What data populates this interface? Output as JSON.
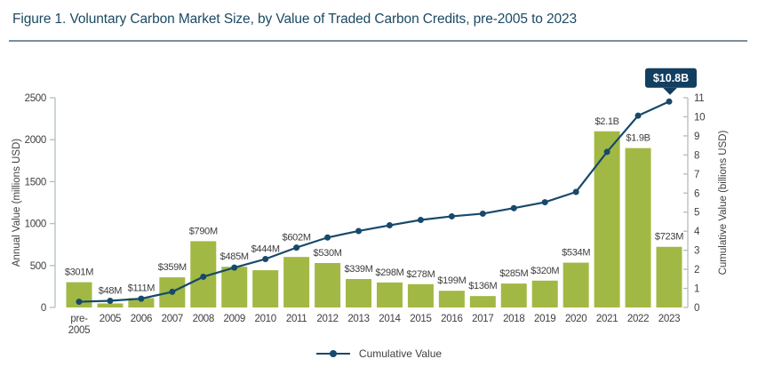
{
  "header": {
    "title": "Figure 1. Voluntary Carbon Market Size, by Value of Traded Carbon Credits, pre-2005 to 2023"
  },
  "chart_data": {
    "type": "bar+line combo",
    "categories": [
      "pre-2005",
      "2005",
      "2006",
      "2007",
      "2008",
      "2009",
      "2010",
      "2011",
      "2012",
      "2013",
      "2014",
      "2015",
      "2016",
      "2017",
      "2018",
      "2019",
      "2020",
      "2021",
      "2022",
      "2023"
    ],
    "series": [
      {
        "name": "Annual Value",
        "type": "bar",
        "axis": "left",
        "values": [
          301,
          48,
          111,
          359,
          790,
          485,
          444,
          602,
          530,
          339,
          298,
          278,
          199,
          136,
          285,
          320,
          534,
          2100,
          1900,
          723
        ],
        "labels": [
          "$301M",
          "$48M",
          "$111M",
          "$359M",
          "$790M",
          "$485M",
          "$444M",
          "$602M",
          "$530M",
          "$339M",
          "$298M",
          "$278M",
          "$199M",
          "$136M",
          "$285M",
          "$320M",
          "$534M",
          "$2.1B",
          "$1.9B",
          "$723M"
        ]
      },
      {
        "name": "Cumulative Value",
        "type": "line",
        "axis": "right",
        "values": [
          0.3,
          0.35,
          0.46,
          0.82,
          1.61,
          2.09,
          2.54,
          3.14,
          3.67,
          4.01,
          4.31,
          4.59,
          4.78,
          4.92,
          5.21,
          5.52,
          6.06,
          8.16,
          10.06,
          10.8
        ]
      }
    ],
    "left_axis": {
      "label": "Annual Value (millions USD)",
      "ticks": [
        0,
        500,
        1000,
        1500,
        2000,
        2500
      ],
      "max": 2500
    },
    "right_axis": {
      "label": "Cumulative Value (billions USD)",
      "ticks": [
        0,
        1,
        2,
        3,
        4,
        5,
        6,
        7,
        8,
        9,
        10,
        11
      ],
      "max": 11
    },
    "annotation": {
      "text": "$10.8B",
      "category": "2023"
    },
    "legend": [
      {
        "label": "Cumulative Value",
        "marker": "line-dot"
      }
    ]
  },
  "colors": {
    "bar": "#a2b844",
    "line": "#17496b",
    "title": "#1b4a63",
    "divider": "#7a8e9c",
    "callout_bg": "#123e60",
    "callout_text": "#ffffff",
    "axis": "#b3bcc1",
    "tick_text": "#3f3f3f",
    "label_text": "#3d3d3d"
  }
}
